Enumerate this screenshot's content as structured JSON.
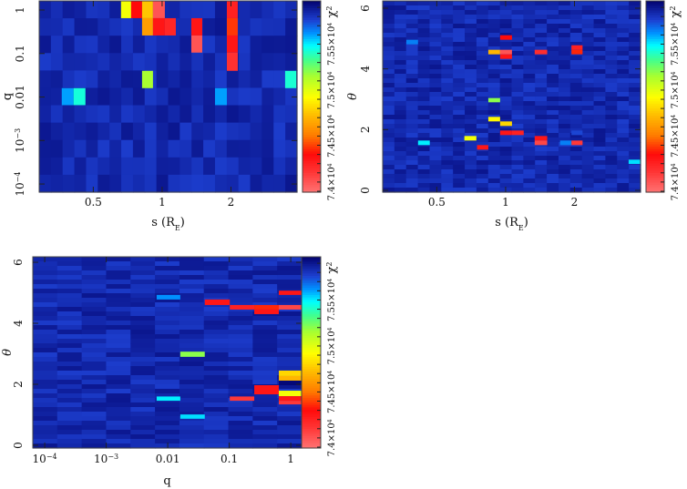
{
  "colormap": {
    "range": [
      73890,
      75970
    ],
    "stops": [
      {
        "v": 73890,
        "c": "#ff7272"
      },
      {
        "v": 74100,
        "c": "#ff3838"
      },
      {
        "v": 74300,
        "c": "#ff0a0a"
      },
      {
        "v": 74500,
        "c": "#ff7a00"
      },
      {
        "v": 74720,
        "c": "#ffbb00"
      },
      {
        "v": 74920,
        "c": "#ffff00"
      },
      {
        "v": 75150,
        "c": "#a8ff30"
      },
      {
        "v": 75330,
        "c": "#40ff90"
      },
      {
        "v": 75480,
        "c": "#00ffff"
      },
      {
        "v": 75620,
        "c": "#0090ff"
      },
      {
        "v": 75760,
        "c": "#1d3fd0"
      },
      {
        "v": 75970,
        "c": "#02026e"
      }
    ],
    "background_range": [
      75770,
      75900
    ]
  },
  "chart_data": [
    {
      "type": "heatmap",
      "title": "",
      "xlabel": {
        "main": "s (R",
        "sub": "E",
        "end": ")"
      },
      "ylabel": "q",
      "xscale": "log",
      "yscale": "log",
      "xlim": [
        0.29,
        3.89
      ],
      "ylim": [
        6.5e-05,
        1.62
      ],
      "xticks": [
        {
          "v": 0.5,
          "label": "0.5"
        },
        {
          "v": 1,
          "label": "1"
        },
        {
          "v": 2,
          "label": "2"
        }
      ],
      "yticks": [
        {
          "v": 1,
          "label": "1"
        },
        {
          "v": 0.1,
          "label": "0.1"
        },
        {
          "v": 0.01,
          "label": "0.01"
        },
        {
          "v": 0.001,
          "label": "10",
          "exp": "−3"
        },
        {
          "v": 0.0001,
          "label": "10",
          "exp": "−4"
        }
      ],
      "grid": {
        "cols": 22,
        "rows": 11
      },
      "colorbar": {
        "label": "χ",
        "label_exp": "2",
        "ticks": [
          {
            "v": 74000,
            "label": "7.4×10",
            "exp": "4"
          },
          {
            "v": 74500,
            "label": "7.45×10",
            "exp": "4"
          },
          {
            "v": 75000,
            "label": "7.5×10",
            "exp": "4"
          },
          {
            "v": 75500,
            "label": "7.55×10",
            "exp": "4"
          }
        ]
      },
      "cells": [
        [
          0.661,
          0.732,
          0.65,
          1.62,
          74950
        ],
        [
          0.732,
          0.817,
          0.65,
          1.62,
          74300
        ],
        [
          0.817,
          0.912,
          0.65,
          1.62,
          74750
        ],
        [
          0.912,
          1.028,
          0.65,
          1.62,
          74000
        ],
        [
          1.919,
          2.142,
          0.65,
          1.62,
          74200
        ],
        [
          0.817,
          0.912,
          0.26,
          0.65,
          74620
        ],
        [
          0.912,
          1.028,
          0.26,
          0.65,
          74250
        ],
        [
          1.028,
          1.148,
          0.26,
          0.65,
          74180
        ],
        [
          1.342,
          1.498,
          0.26,
          0.65,
          74250
        ],
        [
          1.919,
          2.142,
          0.26,
          0.65,
          74380
        ],
        [
          1.342,
          1.498,
          0.105,
          0.26,
          74000
        ],
        [
          1.919,
          2.142,
          0.105,
          0.26,
          74250
        ],
        [
          1.919,
          2.142,
          0.04,
          0.105,
          74130
        ],
        [
          0.817,
          0.912,
          0.016,
          0.04,
          75150
        ],
        [
          3.45,
          3.86,
          0.016,
          0.04,
          75420
        ],
        [
          0.364,
          0.41,
          0.0065,
          0.016,
          75600
        ],
        [
          0.41,
          0.462,
          0.0065,
          0.016,
          75430
        ],
        [
          1.703,
          1.919,
          0.0065,
          0.016,
          75600
        ]
      ]
    },
    {
      "type": "heatmap",
      "title": "",
      "xlabel": {
        "main": "s (R",
        "sub": "E",
        "end": ")"
      },
      "ylabel": "θ",
      "xscale": "log",
      "yscale": "linear",
      "xlim": [
        0.29,
        3.89
      ],
      "ylim": [
        -0.06,
        6.24
      ],
      "xticks": [
        {
          "v": 0.5,
          "label": "0.5"
        },
        {
          "v": 1,
          "label": "1"
        },
        {
          "v": 2,
          "label": "2"
        }
      ],
      "yticks": [
        {
          "v": 0,
          "label": "0"
        },
        {
          "v": 2,
          "label": "2"
        },
        {
          "v": 4,
          "label": "4"
        },
        {
          "v": 6,
          "label": "6"
        }
      ],
      "grid": {
        "cols": 22,
        "rows": 42
      },
      "colorbar": {
        "label": "χ",
        "label_exp": "2",
        "ticks": [
          {
            "v": 74000,
            "label": "7.4×10",
            "exp": "4"
          },
          {
            "v": 74500,
            "label": "7.45×10",
            "exp": "4"
          },
          {
            "v": 75000,
            "label": "7.5×10",
            "exp": "4"
          },
          {
            "v": 75500,
            "label": "7.55×10",
            "exp": "4"
          }
        ]
      },
      "cells": [
        [
          0.368,
          0.414,
          4.81,
          4.96,
          75650
        ],
        [
          0.946,
          1.066,
          4.96,
          5.11,
          74300
        ],
        [
          0.84,
          0.946,
          4.48,
          4.63,
          74700
        ],
        [
          0.946,
          1.066,
          4.48,
          4.63,
          74000
        ],
        [
          0.946,
          1.066,
          4.33,
          4.48,
          74250
        ],
        [
          1.34,
          1.52,
          4.48,
          4.63,
          74150
        ],
        [
          1.94,
          2.17,
          4.63,
          4.78,
          74200
        ],
        [
          1.94,
          2.17,
          4.48,
          4.63,
          74350
        ],
        [
          0.84,
          0.946,
          2.9,
          3.04,
          75200
        ],
        [
          0.84,
          0.946,
          2.27,
          2.42,
          74900
        ],
        [
          0.946,
          1.066,
          2.12,
          2.27,
          74800
        ],
        [
          0.946,
          1.066,
          1.82,
          1.97,
          74250
        ],
        [
          1.066,
          1.2,
          1.82,
          1.97,
          74200
        ],
        [
          0.66,
          0.745,
          1.64,
          1.79,
          74950
        ],
        [
          0.75,
          0.84,
          1.34,
          1.49,
          74250
        ],
        [
          1.34,
          1.52,
          1.64,
          1.79,
          74250
        ],
        [
          1.34,
          1.52,
          1.49,
          1.64,
          74050
        ],
        [
          1.73,
          1.94,
          1.49,
          1.64,
          75650
        ],
        [
          1.94,
          2.17,
          1.49,
          1.64,
          74100
        ],
        [
          1.94,
          2.17,
          1.82,
          1.97,
          75750
        ],
        [
          0.414,
          0.466,
          1.49,
          1.64,
          75500
        ],
        [
          3.45,
          3.89,
          0.87,
          1.01,
          75520
        ]
      ]
    },
    {
      "type": "heatmap",
      "title": "",
      "xlabel": {
        "main": "q",
        "sub": "",
        "end": ""
      },
      "ylabel": "θ",
      "xscale": "log",
      "yscale": "linear",
      "xlim": [
        6.4e-05,
        1.5
      ],
      "ylim": [
        -0.09,
        6.18
      ],
      "xticks": [
        {
          "v": 0.0001,
          "label": "10",
          "exp": "−4"
        },
        {
          "v": 0.001,
          "label": "10",
          "exp": "−3"
        },
        {
          "v": 0.01,
          "label": "0.01"
        },
        {
          "v": 0.1,
          "label": "0.1"
        },
        {
          "v": 1,
          "label": "1"
        }
      ],
      "yticks": [
        {
          "v": 0,
          "label": "0"
        },
        {
          "v": 2,
          "label": "2"
        },
        {
          "v": 4,
          "label": "4"
        },
        {
          "v": 6,
          "label": "6"
        }
      ],
      "grid": {
        "cols": 11,
        "rows": 42
      },
      "colorbar": {
        "label": "χ",
        "label_exp": "2",
        "ticks": [
          {
            "v": 74000,
            "label": "7.4×10",
            "exp": "4"
          },
          {
            "v": 74500,
            "label": "7.45×10",
            "exp": "4"
          },
          {
            "v": 75000,
            "label": "7.5×10",
            "exp": "4"
          },
          {
            "v": 75500,
            "label": "7.55×10",
            "exp": "4"
          }
        ]
      },
      "cells": [
        [
          0.0066,
          0.016,
          4.78,
          4.93,
          75620
        ],
        [
          0.04,
          0.102,
          4.6,
          4.78,
          74250
        ],
        [
          0.102,
          0.255,
          4.45,
          4.6,
          74200
        ],
        [
          0.255,
          0.64,
          4.45,
          4.6,
          74350
        ],
        [
          0.255,
          0.64,
          4.3,
          4.45,
          74250
        ],
        [
          0.64,
          1.5,
          4.93,
          5.07,
          74250
        ],
        [
          0.64,
          1.5,
          4.45,
          4.6,
          74050
        ],
        [
          0.016,
          0.04,
          2.9,
          3.07,
          75200
        ],
        [
          0.64,
          1.5,
          2.27,
          2.45,
          74800
        ],
        [
          0.64,
          1.5,
          2.12,
          2.27,
          74700
        ],
        [
          0.64,
          1.5,
          1.97,
          2.12,
          75950
        ],
        [
          0.255,
          0.64,
          1.67,
          1.97,
          74250
        ],
        [
          0.64,
          1.5,
          1.61,
          1.79,
          74950
        ],
        [
          0.64,
          1.5,
          1.46,
          1.61,
          74250
        ],
        [
          0.64,
          1.5,
          1.34,
          1.46,
          74100
        ],
        [
          0.102,
          0.255,
          1.46,
          1.6,
          74100
        ],
        [
          0.0066,
          0.016,
          1.46,
          1.6,
          75500
        ],
        [
          0.016,
          0.04,
          0.87,
          1.01,
          75520
        ]
      ]
    }
  ]
}
